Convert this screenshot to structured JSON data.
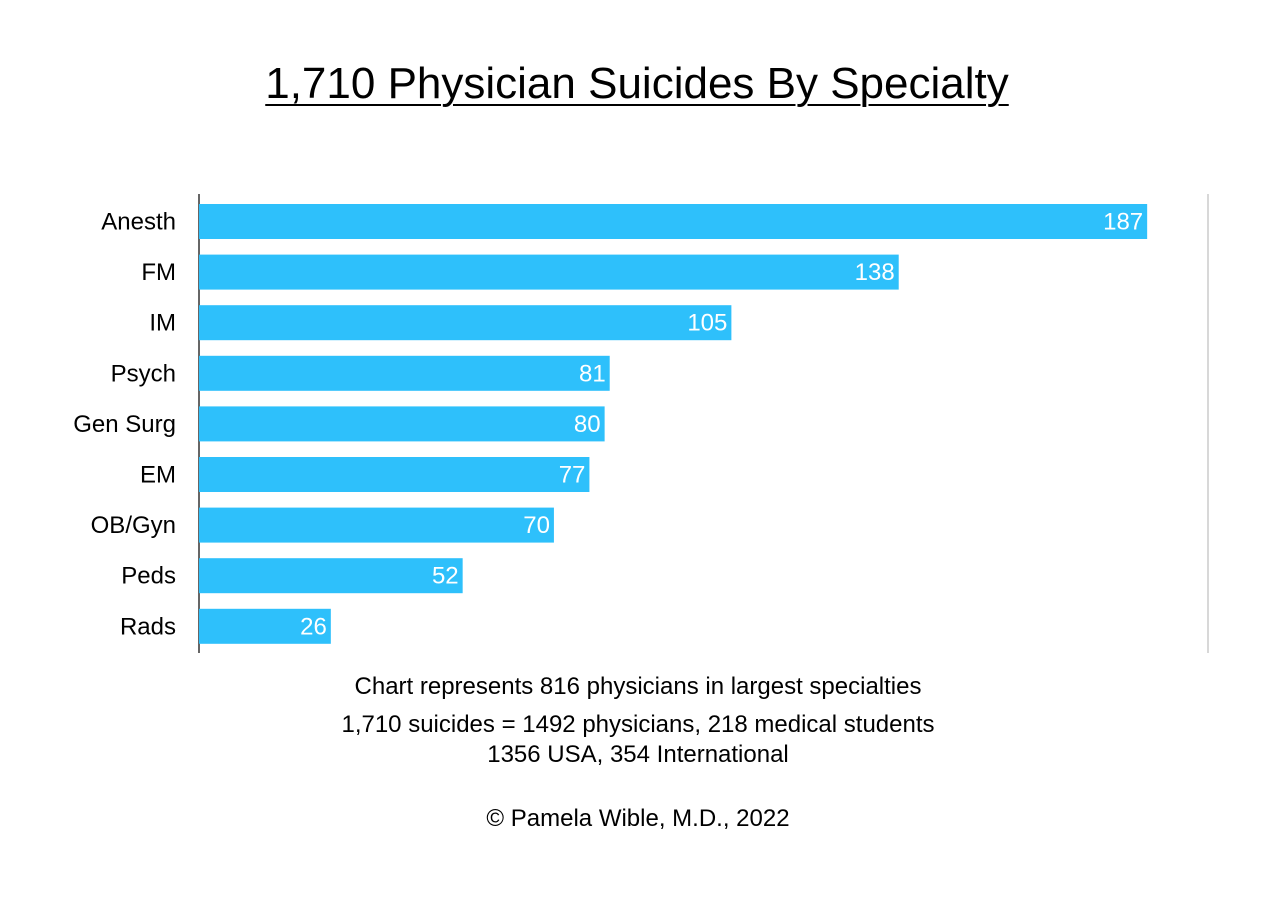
{
  "chart_data": {
    "type": "bar",
    "orientation": "horizontal",
    "title": "1,710 Physician Suicides By Specialty",
    "categories": [
      "Anesth",
      "FM",
      "IM",
      "Psych",
      "Gen Surg",
      "EM",
      "OB/Gyn",
      "Peds",
      "Rads"
    ],
    "values": [
      187,
      138,
      105,
      81,
      80,
      77,
      70,
      52,
      26
    ],
    "xlabel": "",
    "ylabel": "",
    "xlim": [
      0,
      199
    ],
    "grid": false,
    "legend": "none",
    "data_labels": "inside-end",
    "bar_color": "#2EC0FB",
    "label_color": "#ffffff"
  },
  "notes": {
    "line1": "Chart represents 816 physicians in largest specialties",
    "line2": "1,710 suicides = 1492 physicians, 218 medical students",
    "line3": "1356 USA, 354 International"
  },
  "copyright": "© Pamela Wible, M.D., 2022"
}
